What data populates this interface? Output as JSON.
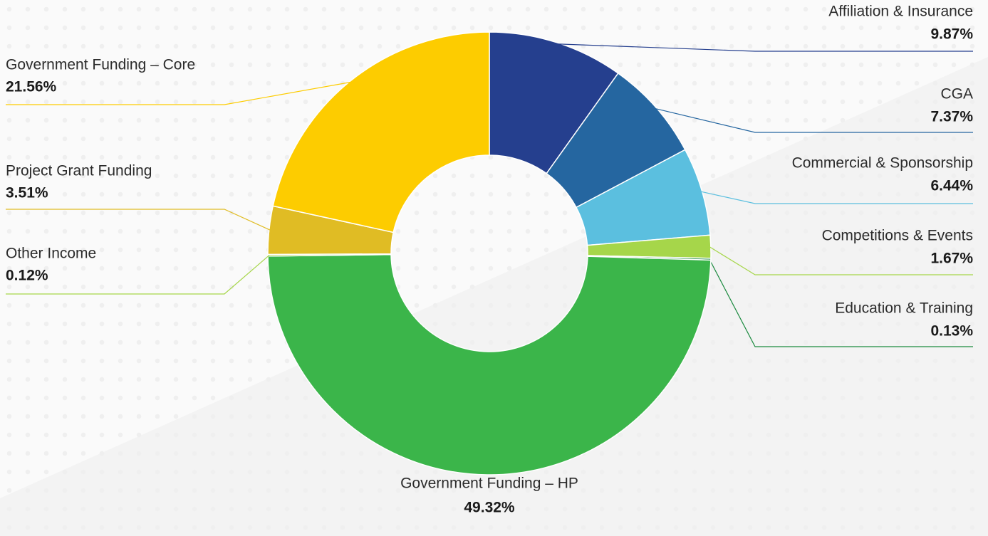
{
  "chart_data": {
    "type": "donut",
    "categories": [
      "Affiliation & Insurance",
      "CGA",
      "Commercial & Sponsorship",
      "Competitions & Events",
      "Education & Training",
      "Government Funding – HP",
      "Other Income",
      "Project Grant Funding",
      "Government Funding – Core"
    ],
    "values": [
      9.87,
      7.37,
      6.44,
      1.67,
      0.13,
      49.32,
      0.12,
      3.51,
      21.56
    ],
    "value_labels": [
      "9.87%",
      "7.37%",
      "6.44%",
      "1.67%",
      "0.13%",
      "49.32%",
      "0.12%",
      "3.51%",
      "21.56%"
    ],
    "colors": [
      "#253f8e",
      "#2566a0",
      "#5bbfdf",
      "#a6d64a",
      "#1b8a3f",
      "#3bb54a",
      "#a6d64a",
      "#e0bc24",
      "#fdcc00"
    ]
  }
}
